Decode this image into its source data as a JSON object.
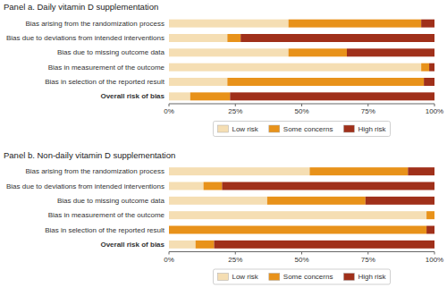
{
  "chart_data": [
    {
      "type": "bar",
      "orientation": "horizontal",
      "stacked": true,
      "title": "Panel a. Daily vitamin D supplementation",
      "categories": [
        "Bias arising from the randomization process",
        "Bias due to deviations from intended interventions",
        "Bias due to missing outcome data",
        "Bias in measurement of the outcome",
        "Bias in selection of the reported result",
        "Overall risk of bias"
      ],
      "series": [
        {
          "name": "Low risk",
          "color": "#F5DEB3",
          "values": [
            45,
            22,
            45,
            95,
            22,
            8
          ]
        },
        {
          "name": "Some concerns",
          "color": "#E8921A",
          "values": [
            50,
            5,
            22,
            3,
            74,
            15
          ]
        },
        {
          "name": "High risk",
          "color": "#A0301A",
          "values": [
            5,
            73,
            33,
            2,
            4,
            77
          ]
        }
      ],
      "xlim": [
        0,
        100
      ],
      "xticks": [
        {
          "value": 0,
          "label": "0%"
        },
        {
          "value": 25,
          "label": "25%"
        },
        {
          "value": 50,
          "label": "50%"
        },
        {
          "value": 75,
          "label": "75%"
        },
        {
          "value": 100,
          "label": "100%"
        }
      ],
      "grid": false,
      "legend": "bottom"
    },
    {
      "type": "bar",
      "orientation": "horizontal",
      "stacked": true,
      "title": "Panel b. Non-daily vitamin D supplementation",
      "categories": [
        "Bias arising from the randomization process",
        "Bias due to deviations from intended interventions",
        "Bias due to missing outcome data",
        "Bias in measurement of the outcome",
        "Bias in selection of the reported result",
        "Overall risk of bias"
      ],
      "series": [
        {
          "name": "Low risk",
          "color": "#F5DEB3",
          "values": [
            53,
            13,
            37,
            97,
            0,
            10
          ]
        },
        {
          "name": "Some concerns",
          "color": "#E8921A",
          "values": [
            37,
            7,
            37,
            3,
            97,
            7
          ]
        },
        {
          "name": "High risk",
          "color": "#A0301A",
          "values": [
            10,
            80,
            26,
            0,
            3,
            83
          ]
        }
      ],
      "xlim": [
        0,
        100
      ],
      "xticks": [
        {
          "value": 0,
          "label": "0%"
        },
        {
          "value": 25,
          "label": "25%"
        },
        {
          "value": 50,
          "label": "50%"
        },
        {
          "value": 75,
          "label": "75%"
        },
        {
          "value": 100,
          "label": "100%"
        }
      ],
      "grid": false,
      "legend": "bottom"
    }
  ]
}
